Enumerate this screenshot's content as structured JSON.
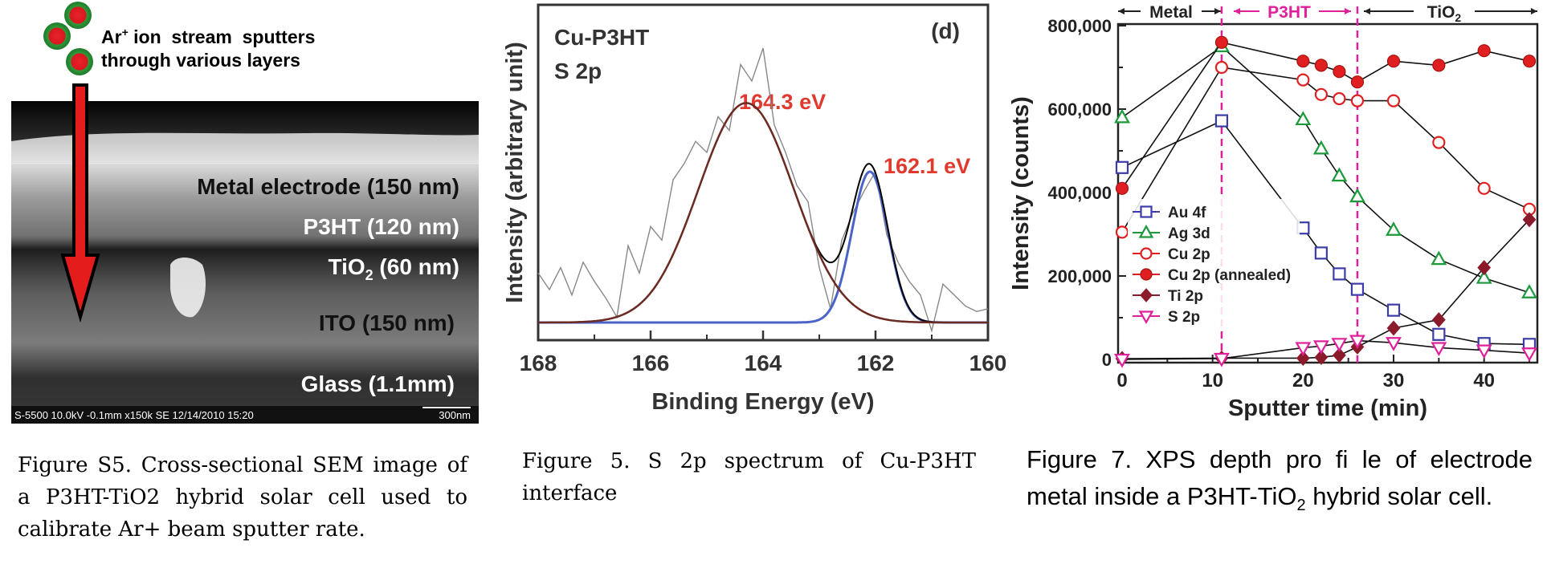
{
  "figures": {
    "sem": {
      "legend_line1": "Ar",
      "legend_sup": "+",
      "legend_line1_rest": " ion  stream  sputters",
      "legend_line2": "through various layers",
      "layers": [
        {
          "label": "Metal electrode (150 nm)"
        },
        {
          "label": "P3HT (120 nm)"
        },
        {
          "label_main": "TiO",
          "label_sub": "2",
          "label_rest": " (60 nm)"
        },
        {
          "label": "ITO (150 nm)"
        },
        {
          "label": "Glass (1.1mm)"
        }
      ],
      "footer_left": "S-5500 10.0kV -0.1mm x150k SE 12/14/2010 15:20",
      "footer_right": "300nm",
      "caption": "Figure S5. Cross-sectional SEM image of a P3HT-TiO2 hybrid solar cell used to calibrate Ar+ beam sputter rate."
    },
    "spectrum": {
      "title_line1": "Cu-P3HT",
      "title_line2": "S 2p",
      "panel_label": "(d)",
      "peak1_label": "164.3 eV",
      "peak2_label": "162.1 eV",
      "caption": "Figure 5. S 2p spectrum of Cu-P3HT interface"
    },
    "depth": {
      "region_metal": "Metal",
      "region_p3ht": "P3HT",
      "region_tio2_main": "TiO",
      "region_tio2_sub": "2",
      "caption_part1": "Figure 7. XPS depth pro fi le of electrode metal inside a P3HT-TiO",
      "caption_sub": "2",
      "caption_part2": " hybrid solar cell."
    }
  },
  "chart_data": [
    {
      "type": "line",
      "xlabel": "Binding Energy (eV)",
      "ylabel": "Intensity (arbitrary unit)",
      "xlim": [
        168,
        160
      ],
      "x_reversed": true,
      "xticks": [
        "168",
        "166",
        "164",
        "162",
        "160"
      ],
      "ylim": [
        0,
        1
      ],
      "series": [
        {
          "name": "raw",
          "color": "#888888",
          "x": [
            168,
            167.8,
            167.6,
            167.4,
            167.2,
            167.0,
            166.8,
            166.6,
            166.4,
            166.2,
            166.0,
            165.8,
            165.6,
            165.4,
            165.2,
            165.0,
            164.8,
            164.6,
            164.4,
            164.2,
            164.0,
            163.8,
            163.6,
            163.4,
            163.2,
            163.0,
            162.8,
            162.6,
            162.4,
            162.2,
            162.0,
            161.8,
            161.6,
            161.4,
            161.2,
            161.0,
            160.8,
            160.6,
            160.4,
            160.2,
            160.0
          ],
          "y": [
            0.18,
            0.12,
            0.2,
            0.1,
            0.22,
            0.15,
            0.09,
            0.02,
            0.28,
            0.18,
            0.35,
            0.3,
            0.52,
            0.58,
            0.66,
            0.62,
            0.75,
            0.7,
            0.94,
            0.88,
            1.0,
            0.72,
            0.62,
            0.5,
            0.44,
            0.2,
            0.05,
            0.3,
            0.4,
            0.48,
            0.55,
            0.32,
            0.22,
            0.15,
            0.1,
            -0.03,
            0.14,
            0.1,
            0.06,
            0.04,
            0.05
          ]
        },
        {
          "name": "fit 164.3 eV",
          "color": "#6b2a22",
          "type": "gaussian",
          "center": 164.3,
          "amplitude": 0.8,
          "sigma": 0.85
        },
        {
          "name": "fit 162.1 eV",
          "color": "#4a63c8",
          "type": "gaussian",
          "center": 162.1,
          "amplitude": 0.55,
          "sigma": 0.32
        },
        {
          "name": "envelope",
          "color": "#000000",
          "type": "sum"
        },
        {
          "name": "background",
          "color": "#e64a3c",
          "type": "background"
        }
      ]
    },
    {
      "type": "line",
      "xlabel": "Sputter time (min)",
      "ylabel": "Intensity (counts)",
      "xlim": [
        0,
        45
      ],
      "ylim": [
        0,
        800000
      ],
      "xticks": [
        0,
        10,
        20,
        30,
        40
      ],
      "yticks": [
        0,
        200000,
        400000,
        600000,
        800000
      ],
      "ytick_labels": [
        "0",
        "200,000",
        "400,000",
        "600,000",
        "800,000"
      ],
      "vlines": [
        11,
        26
      ],
      "legend_position": "left-middle",
      "series": [
        {
          "name": "Au 4f",
          "color": "#3c3ca8",
          "marker": "square-open",
          "x": [
            0,
            11,
            20,
            22,
            24,
            26,
            30,
            35,
            40,
            45
          ],
          "y": [
            460000,
            572000,
            315000,
            255000,
            205000,
            168000,
            118000,
            60000,
            38000,
            36000
          ]
        },
        {
          "name": "Ag 3d",
          "color": "#1a9a3a",
          "marker": "triangle-open",
          "x": [
            0,
            11,
            20,
            22,
            24,
            26,
            30,
            35,
            40,
            45
          ],
          "y": [
            580000,
            750000,
            575000,
            505000,
            440000,
            390000,
            310000,
            240000,
            195000,
            160000
          ]
        },
        {
          "name": "Cu 2p",
          "color": "#e02020",
          "marker": "circle-open",
          "x": [
            0,
            11,
            20,
            22,
            24,
            26,
            30,
            35,
            40,
            45
          ],
          "y": [
            305000,
            700000,
            670000,
            635000,
            625000,
            620000,
            620000,
            520000,
            410000,
            360000
          ]
        },
        {
          "name": "Cu 2p (annealed)",
          "color": "#e02020",
          "marker": "circle-filled",
          "x": [
            0,
            11,
            20,
            22,
            24,
            26,
            30,
            35,
            40,
            45
          ],
          "y": [
            410000,
            760000,
            715000,
            705000,
            690000,
            665000,
            715000,
            705000,
            740000,
            715000
          ]
        },
        {
          "name": "Ti 2p",
          "color": "#8b1a2a",
          "marker": "diamond-filled",
          "x": [
            0,
            11,
            20,
            22,
            24,
            26,
            30,
            35,
            40,
            45
          ],
          "y": [
            2000,
            3000,
            3000,
            5000,
            10000,
            30000,
            75000,
            95000,
            220000,
            335000
          ]
        },
        {
          "name": "S 2p",
          "color": "#e0209a",
          "marker": "tri-down-open",
          "x": [
            0,
            11,
            20,
            22,
            24,
            26,
            30,
            35,
            40,
            45
          ],
          "y": [
            0,
            2000,
            28000,
            32000,
            38000,
            45000,
            40000,
            28000,
            22000,
            15000
          ]
        }
      ]
    }
  ]
}
